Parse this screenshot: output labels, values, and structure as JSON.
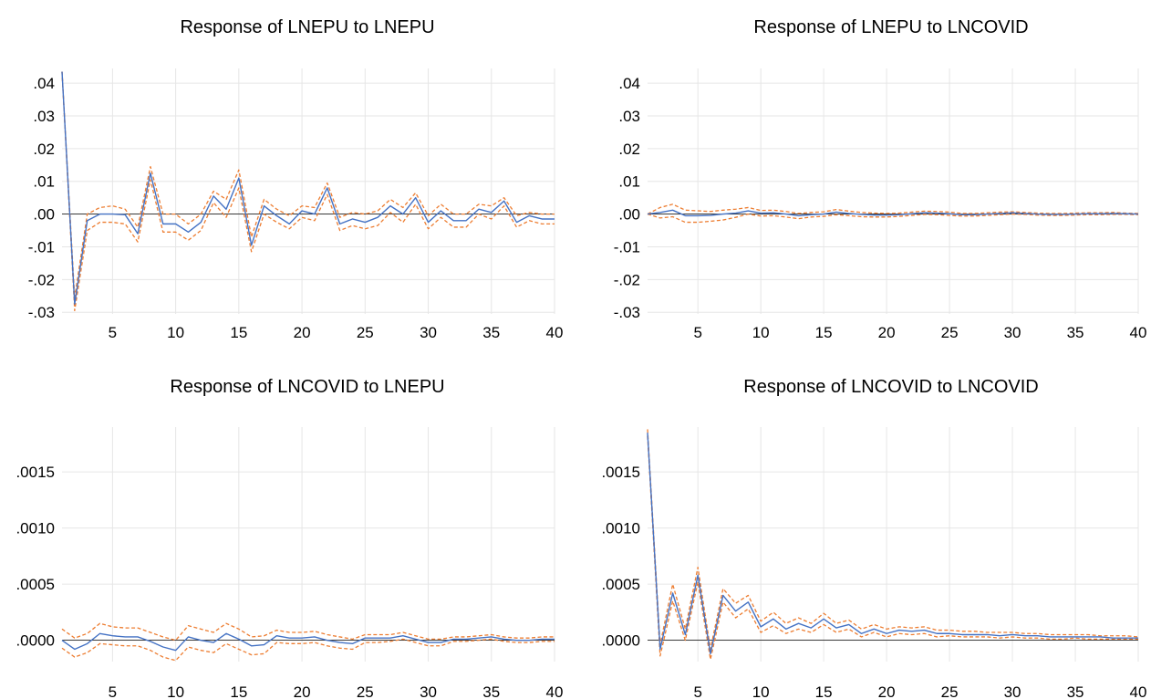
{
  "colors": {
    "response": "#4472c4",
    "bands": "#ed7d31",
    "grid": "#e6e6e6",
    "zero": "#000000"
  },
  "chart_data": [
    {
      "type": "line",
      "title": "Response of LNEPU to LNEPU",
      "x_ticks": [
        "5",
        "10",
        "15",
        "20",
        "25",
        "30",
        "35",
        "40"
      ],
      "y_ticks": [
        {
          "value": 0.04,
          "label": ".04"
        },
        {
          "value": 0.03,
          "label": ".03"
        },
        {
          "value": 0.02,
          "label": ".02"
        },
        {
          "value": 0.01,
          "label": ".01"
        },
        {
          "value": 0.0,
          "label": ".00"
        },
        {
          "value": -0.01,
          "label": "-.01"
        },
        {
          "value": -0.02,
          "label": "-.02"
        },
        {
          "value": -0.03,
          "label": "-.03"
        }
      ],
      "xlim": [
        1,
        40
      ],
      "ylim": [
        -0.0305,
        0.0445
      ],
      "grid": true,
      "series": [
        {
          "role": "response",
          "style": "solid",
          "values": [
            0.0435,
            -0.0275,
            -0.002,
            0.0,
            0.0,
            -0.0002,
            -0.006,
            0.0125,
            -0.003,
            -0.003,
            -0.0055,
            -0.0025,
            0.0055,
            0.0015,
            0.011,
            -0.0095,
            0.0025,
            -0.0005,
            -0.003,
            0.001,
            0.0,
            0.008,
            -0.003,
            -0.0015,
            -0.0025,
            -0.001,
            0.0025,
            0.0,
            0.005,
            -0.0025,
            0.001,
            -0.002,
            -0.002,
            0.0015,
            0.0005,
            0.004,
            -0.0025,
            -0.0005,
            -0.0015,
            -0.0015
          ]
        },
        {
          "role": "upper",
          "style": "dashed",
          "values": [
            0.0435,
            -0.0255,
            0.0,
            0.002,
            0.0025,
            0.0015,
            -0.004,
            0.0145,
            0.0,
            0.0,
            -0.003,
            0.0,
            0.007,
            0.0045,
            0.0135,
            -0.007,
            0.0045,
            0.0015,
            -0.0005,
            0.0025,
            0.002,
            0.0095,
            -0.001,
            0.0005,
            0.0,
            0.001,
            0.0045,
            0.002,
            0.0065,
            -0.0005,
            0.003,
            0.0,
            0.0,
            0.003,
            0.0025,
            0.005,
            -0.0005,
            0.0005,
            0.0,
            0.0
          ]
        },
        {
          "role": "lower",
          "style": "dashed",
          "values": [
            0.0435,
            -0.0295,
            -0.005,
            -0.0025,
            -0.0025,
            -0.003,
            -0.0085,
            0.0105,
            -0.0055,
            -0.0055,
            -0.008,
            -0.005,
            0.0035,
            -0.001,
            0.008,
            -0.0115,
            0.0,
            -0.0025,
            -0.0045,
            -0.001,
            -0.002,
            0.006,
            -0.005,
            -0.0035,
            -0.0045,
            -0.0035,
            0.0005,
            -0.0025,
            0.003,
            -0.0045,
            -0.001,
            -0.004,
            -0.004,
            0.0,
            -0.0015,
            0.0025,
            -0.004,
            -0.002,
            -0.003,
            -0.003
          ]
        }
      ]
    },
    {
      "type": "line",
      "title": "Response of LNEPU to LNCOVID",
      "x_ticks": [
        "5",
        "10",
        "15",
        "20",
        "25",
        "30",
        "35",
        "40"
      ],
      "y_ticks": [
        {
          "value": 0.04,
          "label": ".04"
        },
        {
          "value": 0.03,
          "label": ".03"
        },
        {
          "value": 0.02,
          "label": ".02"
        },
        {
          "value": 0.01,
          "label": ".01"
        },
        {
          "value": 0.0,
          "label": ".00"
        },
        {
          "value": -0.01,
          "label": "-.01"
        },
        {
          "value": -0.02,
          "label": "-.02"
        },
        {
          "value": -0.03,
          "label": "-.03"
        }
      ],
      "xlim": [
        1,
        40
      ],
      "ylim": [
        -0.0305,
        0.0445
      ],
      "grid": true,
      "series": [
        {
          "role": "response",
          "style": "solid",
          "values": [
            0.0,
            0.0005,
            0.0012,
            -0.0005,
            -0.0005,
            -0.0004,
            0.0,
            0.0003,
            0.001,
            0.0003,
            0.0004,
            0.0,
            -0.0005,
            -0.0002,
            0.0,
            0.0006,
            0.0002,
            -0.0001,
            -0.0003,
            -0.0003,
            -0.0002,
            0.0001,
            0.0004,
            0.0003,
            0.0001,
            -0.0002,
            -0.0002,
            0.0,
            0.0002,
            0.0004,
            0.0002,
            0.0,
            -0.0001,
            -0.0001,
            0.0,
            0.0001,
            0.0001,
            0.0002,
            0.0001,
            0.0
          ]
        },
        {
          "role": "upper",
          "style": "dashed",
          "values": [
            0.0,
            0.002,
            0.003,
            0.0012,
            0.001,
            0.0008,
            0.0012,
            0.0015,
            0.002,
            0.0011,
            0.0012,
            0.0008,
            0.0002,
            0.0005,
            0.0007,
            0.0014,
            0.0009,
            0.0005,
            0.0003,
            0.0002,
            0.0003,
            0.0006,
            0.0009,
            0.0008,
            0.0006,
            0.0002,
            0.0002,
            0.0004,
            0.0006,
            0.0007,
            0.0005,
            0.0003,
            0.0002,
            0.0002,
            0.0003,
            0.0004,
            0.0004,
            0.0005,
            0.0003,
            0.0002
          ]
        },
        {
          "role": "lower",
          "style": "dashed",
          "values": [
            0.0,
            -0.0012,
            -0.0008,
            -0.0025,
            -0.0025,
            -0.0022,
            -0.0018,
            -0.001,
            0.0,
            -0.0006,
            -0.0005,
            -0.0009,
            -0.0014,
            -0.0009,
            -0.0007,
            -0.0002,
            -0.0005,
            -0.0008,
            -0.0009,
            -0.0009,
            -0.0007,
            -0.0004,
            -0.0001,
            -0.0002,
            -0.0004,
            -0.0006,
            -0.0006,
            -0.0004,
            -0.0002,
            0.0,
            -0.0001,
            -0.0003,
            -0.0004,
            -0.0004,
            -0.0003,
            -0.0002,
            -0.0002,
            -0.0001,
            -0.0001,
            -0.0002
          ]
        }
      ]
    },
    {
      "type": "line",
      "title": "Response of LNCOVID to LNEPU",
      "x_ticks": [
        "5",
        "10",
        "15",
        "20",
        "25",
        "30",
        "35",
        "40"
      ],
      "y_ticks": [
        {
          "value": 0.0015,
          "label": ".0015"
        },
        {
          "value": 0.001,
          "label": ".0010"
        },
        {
          "value": 0.0005,
          "label": ".0005"
        },
        {
          "value": 0.0,
          "label": ".0000"
        }
      ],
      "xlim": [
        1,
        40
      ],
      "ylim": [
        -0.00019,
        0.0019
      ],
      "grid": true,
      "series": [
        {
          "role": "response",
          "style": "solid",
          "values": [
            0.0,
            -8e-05,
            -3e-05,
            6e-05,
            4e-05,
            3e-05,
            3e-05,
            -1e-05,
            -6e-05,
            -9e-05,
            3e-05,
            0.0,
            -2e-05,
            6e-05,
            1e-05,
            -5e-05,
            -4e-05,
            4e-05,
            2e-05,
            2e-05,
            3e-05,
            0.0,
            -2e-05,
            -3e-05,
            2e-05,
            2e-05,
            2e-05,
            4e-05,
            1e-05,
            -2e-05,
            -2e-05,
            1e-05,
            1e-05,
            2e-05,
            3e-05,
            1e-05,
            0.0,
            0.0,
            1e-05,
            1e-05
          ]
        },
        {
          "role": "upper",
          "style": "dashed",
          "values": [
            0.0001,
            2e-05,
            6e-05,
            0.00015,
            0.00012,
            0.00011,
            0.00011,
            7e-05,
            3e-05,
            0.0,
            0.00013,
            0.0001,
            7e-05,
            0.00015,
            0.0001,
            3e-05,
            4e-05,
            9e-05,
            7e-05,
            7e-05,
            8e-05,
            5e-05,
            3e-05,
            1e-05,
            5e-05,
            5e-05,
            5e-05,
            7e-05,
            4e-05,
            1e-05,
            1e-05,
            3e-05,
            3e-05,
            4e-05,
            5e-05,
            3e-05,
            2e-05,
            2e-05,
            3e-05,
            3e-05
          ]
        },
        {
          "role": "lower",
          "style": "dashed",
          "values": [
            -7e-05,
            -0.00015,
            -0.00011,
            -3e-05,
            -4e-05,
            -5e-05,
            -5e-05,
            -9e-05,
            -0.00015,
            -0.00018,
            -6e-05,
            -9e-05,
            -0.00011,
            -3e-05,
            -8e-05,
            -0.00013,
            -0.00012,
            -2e-05,
            -3e-05,
            -3e-05,
            -2e-05,
            -5e-05,
            -7e-05,
            -8e-05,
            -2e-05,
            -2e-05,
            -1e-05,
            1e-05,
            -2e-05,
            -5e-05,
            -5e-05,
            -1e-05,
            -1e-05,
            0.0,
            1e-05,
            -1e-05,
            -2e-05,
            -2e-05,
            -1e-05,
            -1e-05
          ]
        }
      ]
    },
    {
      "type": "line",
      "title": "Response of LNCOVID to LNCOVID",
      "x_ticks": [
        "5",
        "10",
        "15",
        "20",
        "25",
        "30",
        "35",
        "40"
      ],
      "y_ticks": [
        {
          "value": 0.0015,
          "label": ".0015"
        },
        {
          "value": 0.001,
          "label": ".0010"
        },
        {
          "value": 0.0005,
          "label": ".0005"
        },
        {
          "value": 0.0,
          "label": ".0000"
        }
      ],
      "xlim": [
        1,
        40
      ],
      "ylim": [
        -0.00019,
        0.0019
      ],
      "grid": true,
      "series": [
        {
          "role": "response",
          "style": "solid",
          "values": [
            0.00185,
            -8e-05,
            0.00042,
            5e-05,
            0.00058,
            -0.00012,
            0.0004,
            0.00026,
            0.00034,
            0.00012,
            0.00019,
            0.0001,
            0.00015,
            0.00011,
            0.00019,
            0.00011,
            0.00014,
            6e-05,
            0.0001,
            6e-05,
            9e-05,
            8e-05,
            9e-05,
            6e-05,
            6e-05,
            5e-05,
            5e-05,
            5e-05,
            4e-05,
            5e-05,
            4e-05,
            4e-05,
            3e-05,
            3e-05,
            3e-05,
            3e-05,
            3e-05,
            2e-05,
            2e-05,
            2e-05
          ]
        },
        {
          "role": "upper",
          "style": "dashed",
          "values": [
            0.00188,
            -4e-05,
            0.0005,
            0.0001,
            0.00065,
            -8e-05,
            0.00046,
            0.00033,
            0.0004,
            0.00017,
            0.00025,
            0.00015,
            0.0002,
            0.00015,
            0.00024,
            0.00015,
            0.00018,
            0.0001,
            0.00014,
            0.0001,
            0.00012,
            0.00011,
            0.00012,
            9e-05,
            9e-05,
            8e-05,
            8e-05,
            7e-05,
            7e-05,
            7e-05,
            6e-05,
            6e-05,
            5e-05,
            5e-05,
            5e-05,
            5e-05,
            4e-05,
            4e-05,
            4e-05,
            3e-05
          ]
        },
        {
          "role": "lower",
          "style": "dashed",
          "values": [
            0.00182,
            -0.00014,
            0.00035,
            0.0,
            0.00052,
            -0.00017,
            0.00034,
            0.0002,
            0.00028,
            7e-05,
            0.00013,
            6e-05,
            0.0001,
            7e-05,
            0.00014,
            7e-05,
            0.0001,
            3e-05,
            7e-05,
            3e-05,
            6e-05,
            5e-05,
            6e-05,
            3e-05,
            4e-05,
            3e-05,
            3e-05,
            3e-05,
            2e-05,
            3e-05,
            2e-05,
            2e-05,
            1e-05,
            1e-05,
            2e-05,
            1e-05,
            1e-05,
            1e-05,
            1e-05,
            1e-05
          ]
        }
      ]
    }
  ]
}
